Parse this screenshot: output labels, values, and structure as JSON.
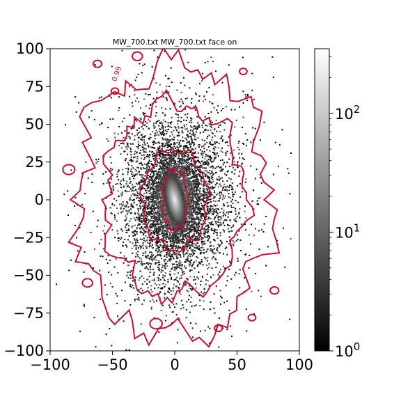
{
  "chart_data": {
    "type": "heatmap",
    "title": "MW_700.txt MW_700.txt face on",
    "xlim": [
      -100,
      100
    ],
    "ylim": [
      -100,
      100
    ],
    "x_ticks": [
      -100,
      -50,
      0,
      50,
      100
    ],
    "y_ticks": [
      -100,
      -75,
      -50,
      -25,
      0,
      25,
      50,
      75,
      100
    ],
    "colorbar": {
      "scale": "log",
      "range": [
        1,
        350
      ],
      "ticks": [
        {
          "value": 1,
          "base": "10",
          "exp": "0"
        },
        {
          "value": 10,
          "base": "10",
          "exp": "1"
        },
        {
          "value": 100,
          "base": "10",
          "exp": "2"
        }
      ],
      "colormap": "gray"
    },
    "density": {
      "center": [
        0,
        0
      ],
      "core_axes": [
        6,
        14
      ],
      "bulge_axes": [
        18,
        28
      ],
      "disk_axes": [
        48,
        58
      ],
      "halo_axes": [
        70,
        78
      ]
    },
    "contours": {
      "color": "#c8102e",
      "levels": [
        {
          "label": "",
          "axes": [
            26,
            33
          ],
          "rotation_deg": 0
        },
        {
          "label": "",
          "axes": [
            10,
            20
          ],
          "rotation_deg": 0
        },
        {
          "label": "",
          "axes": [
            56,
            64
          ],
          "rotation_deg": 0
        },
        {
          "label": "",
          "axes": [
            78,
            90
          ],
          "rotation_deg": 0
        }
      ],
      "inline_label": "0.99",
      "inline_label_xy": [
        -47,
        78
      ]
    }
  }
}
